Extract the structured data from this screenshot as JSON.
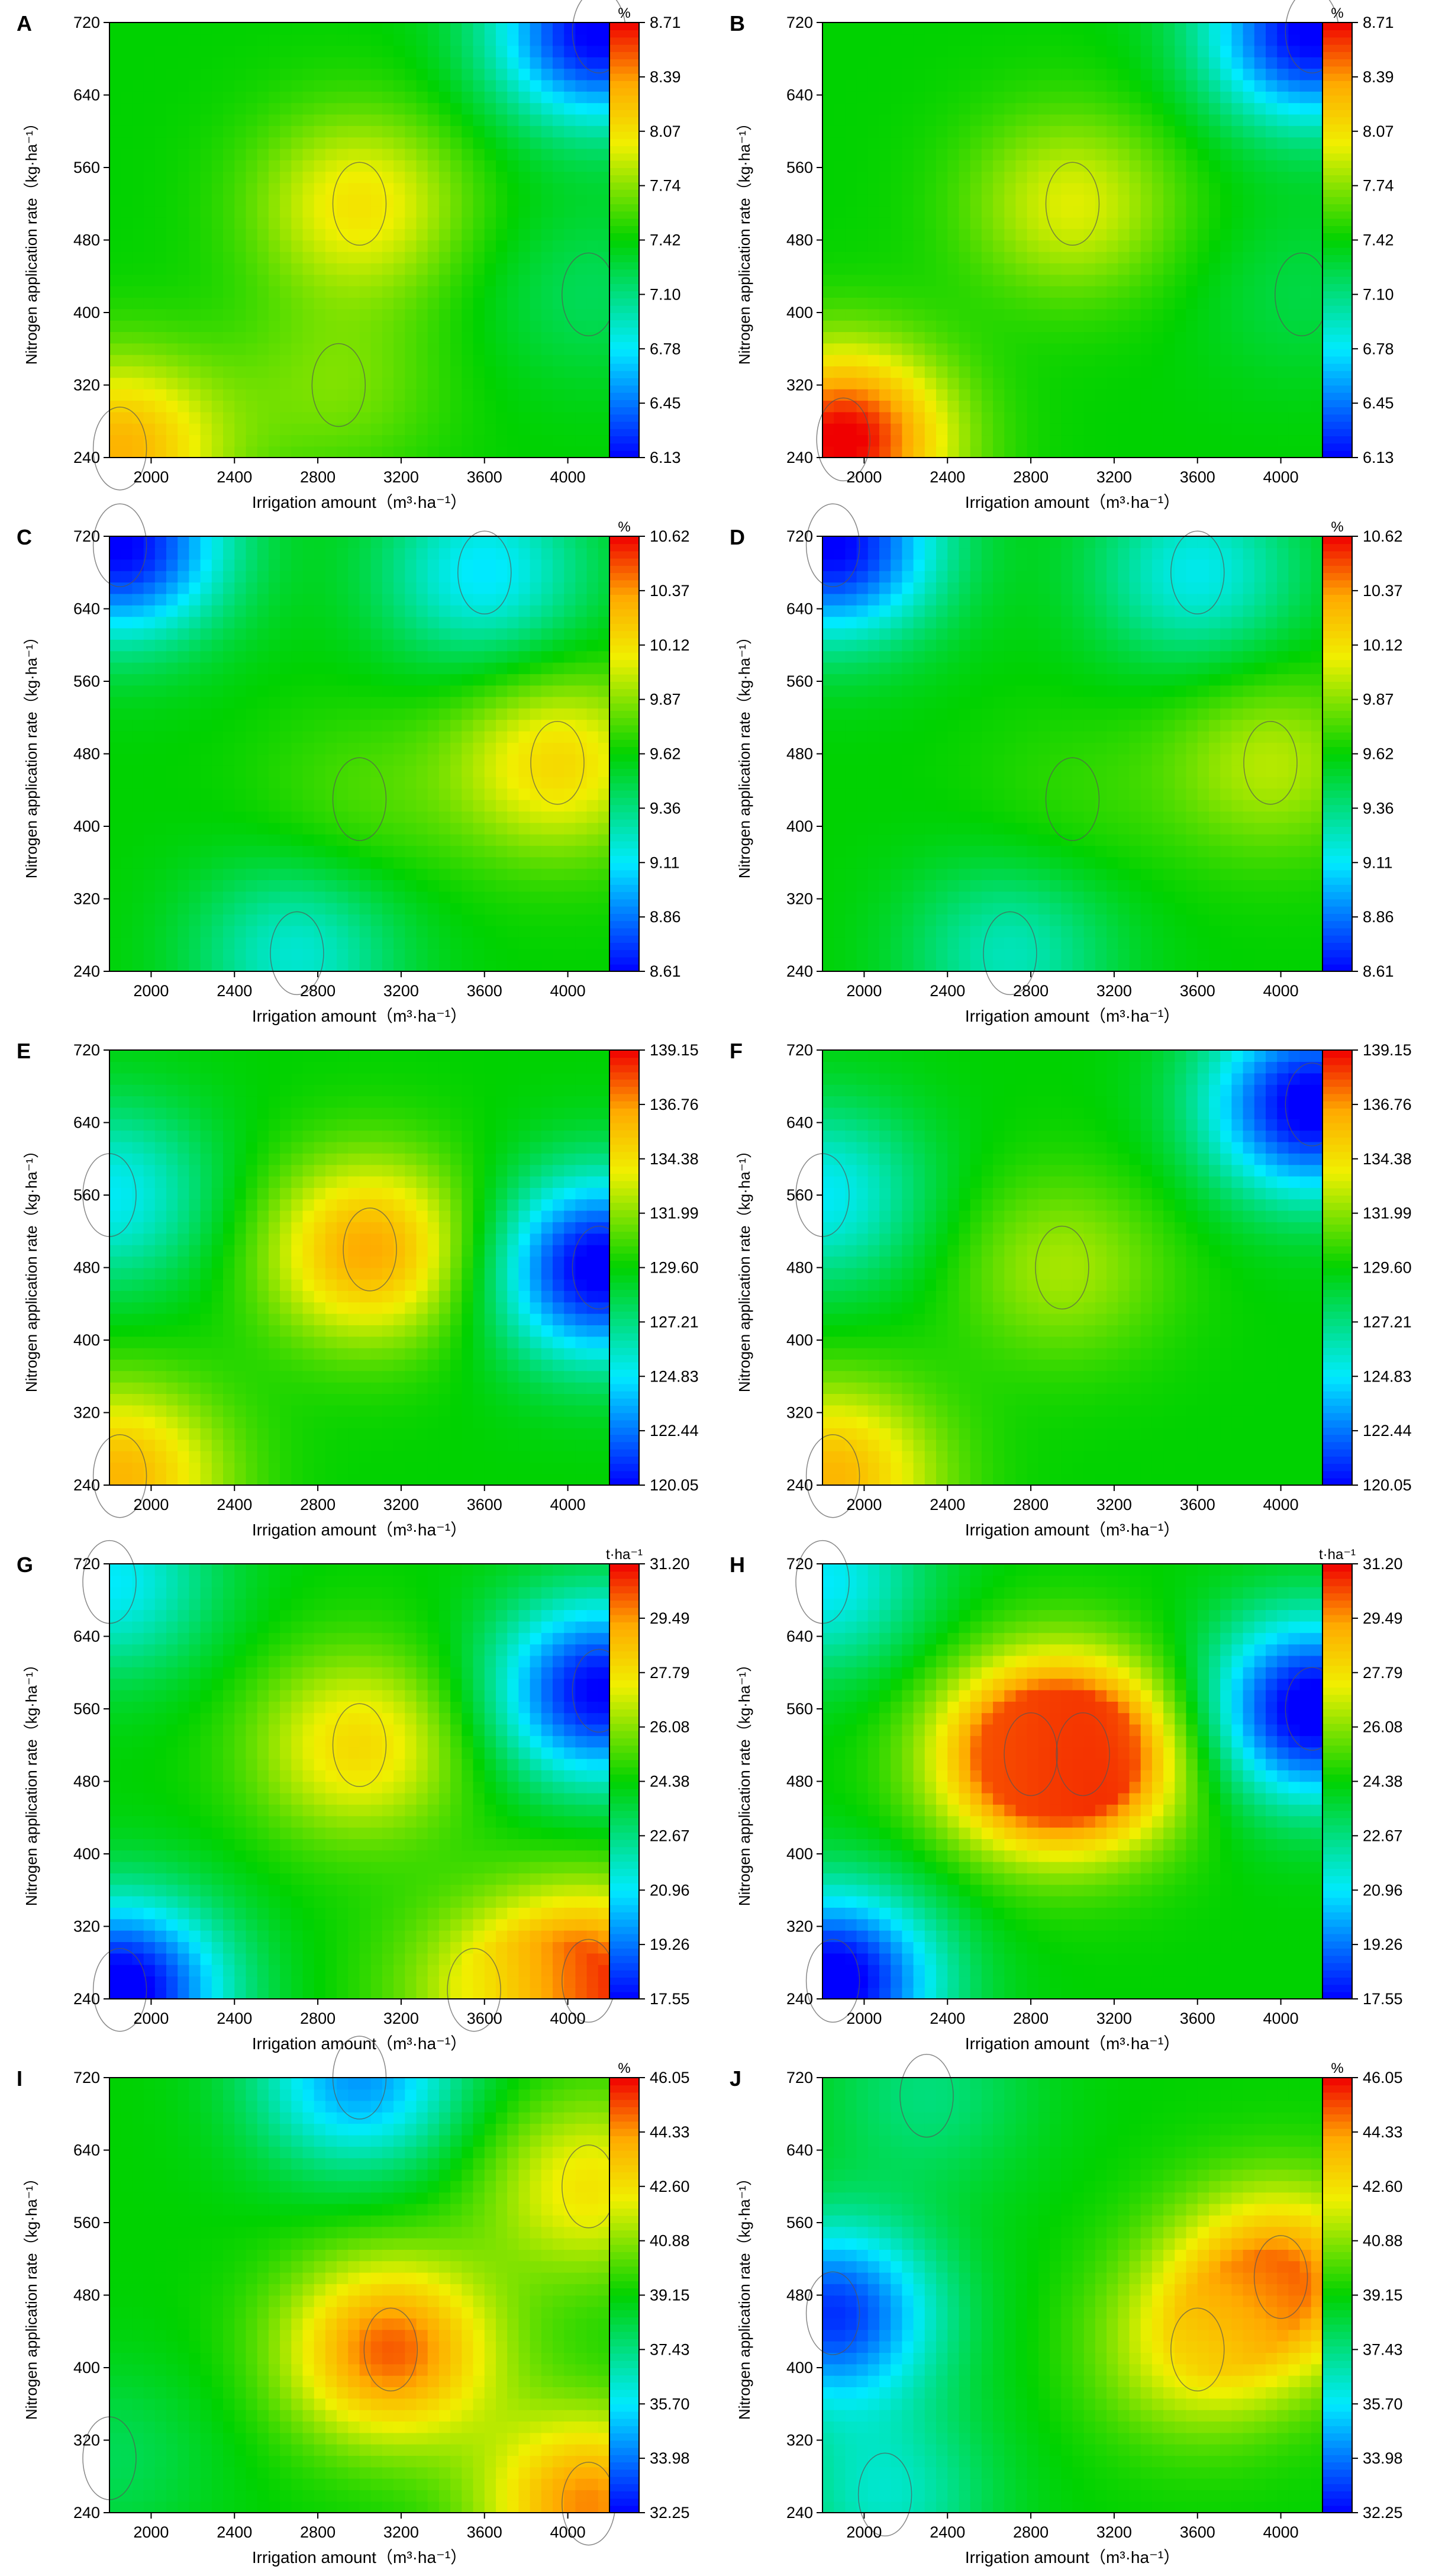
{
  "chart_data": [
    {
      "panel": "A",
      "type": "heatmap",
      "xlabel": "Irrigation amount（m³·ha⁻¹）",
      "ylabel": "Nitrogen application rate（kg·ha⁻¹）",
      "unit": "%",
      "x_ticks": [
        "2000",
        "2400",
        "2800",
        "3200",
        "3600",
        "4000"
      ],
      "y_ticks": [
        "240",
        "320",
        "400",
        "480",
        "560",
        "640",
        "720"
      ],
      "xlim": [
        1800,
        4200
      ],
      "ylim": [
        240,
        720
      ],
      "colorbar": [
        "6.13",
        "6.45",
        "6.78",
        "7.10",
        "7.42",
        "7.74",
        "8.07",
        "8.39",
        "8.71"
      ],
      "zlim": [
        6.13,
        8.71
      ],
      "hotspots": [
        {
          "x": 3000,
          "y": 520,
          "value": 8.05
        },
        {
          "x": 1850,
          "y": 250,
          "value": 8.3
        },
        {
          "x": 2900,
          "y": 320,
          "value": 7.7
        }
      ],
      "coldspots": [
        {
          "x": 4150,
          "y": 710,
          "value": 6.1
        },
        {
          "x": 4100,
          "y": 420,
          "value": 7.2
        }
      ]
    },
    {
      "panel": "B",
      "type": "heatmap",
      "xlabel": "Irrigation amount（m³·ha⁻¹）",
      "ylabel": "Nitrogen application rate（kg·ha⁻¹）",
      "unit": "%",
      "x_ticks": [
        "2000",
        "2400",
        "2800",
        "3200",
        "3600",
        "4000"
      ],
      "y_ticks": [
        "240",
        "320",
        "400",
        "480",
        "560",
        "640",
        "720"
      ],
      "xlim": [
        1800,
        4200
      ],
      "ylim": [
        240,
        720
      ],
      "colorbar": [
        "6.13",
        "6.45",
        "6.78",
        "7.10",
        "7.42",
        "7.74",
        "8.07",
        "8.39",
        "8.71"
      ],
      "zlim": [
        6.13,
        8.71
      ],
      "hotspots": [
        {
          "x": 1900,
          "y": 260,
          "value": 8.75
        },
        {
          "x": 3000,
          "y": 520,
          "value": 7.95
        }
      ],
      "coldspots": [
        {
          "x": 4150,
          "y": 710,
          "value": 6.1
        },
        {
          "x": 4100,
          "y": 420,
          "value": 7.25
        }
      ]
    },
    {
      "panel": "C",
      "type": "heatmap",
      "xlabel": "Irrigation amount（m³·ha⁻¹）",
      "ylabel": "Nitrogen application rate（kg·ha⁻¹）",
      "unit": "%",
      "x_ticks": [
        "2000",
        "2400",
        "2800",
        "3200",
        "3600",
        "4000"
      ],
      "y_ticks": [
        "240",
        "320",
        "400",
        "480",
        "560",
        "640",
        "720"
      ],
      "xlim": [
        1800,
        4200
      ],
      "ylim": [
        240,
        720
      ],
      "colorbar": [
        "8.61",
        "8.86",
        "9.11",
        "9.36",
        "9.62",
        "9.87",
        "10.12",
        "10.37",
        "10.62"
      ],
      "zlim": [
        8.61,
        10.62
      ],
      "hotspots": [
        {
          "x": 3950,
          "y": 470,
          "value": 10.15
        },
        {
          "x": 3000,
          "y": 430,
          "value": 9.75
        }
      ],
      "coldspots": [
        {
          "x": 1850,
          "y": 710,
          "value": 8.6
        },
        {
          "x": 2700,
          "y": 260,
          "value": 9.2
        },
        {
          "x": 3600,
          "y": 680,
          "value": 9.1
        }
      ]
    },
    {
      "panel": "D",
      "type": "heatmap",
      "xlabel": "Irrigation amount（m³·ha⁻¹）",
      "ylabel": "Nitrogen application rate（kg·ha⁻¹）",
      "unit": "%",
      "x_ticks": [
        "2000",
        "2400",
        "2800",
        "3200",
        "3600",
        "4000"
      ],
      "y_ticks": [
        "240",
        "320",
        "400",
        "480",
        "560",
        "640",
        "720"
      ],
      "xlim": [
        1800,
        4200
      ],
      "ylim": [
        240,
        720
      ],
      "colorbar": [
        "8.61",
        "8.86",
        "9.11",
        "9.36",
        "9.62",
        "9.87",
        "10.12",
        "10.37",
        "10.62"
      ],
      "zlim": [
        8.61,
        10.62
      ],
      "hotspots": [
        {
          "x": 3950,
          "y": 470,
          "value": 9.95
        },
        {
          "x": 3000,
          "y": 430,
          "value": 9.7
        }
      ],
      "coldspots": [
        {
          "x": 1850,
          "y": 710,
          "value": 8.6
        },
        {
          "x": 2700,
          "y": 260,
          "value": 9.25
        },
        {
          "x": 3600,
          "y": 680,
          "value": 9.15
        }
      ]
    },
    {
      "panel": "E",
      "type": "heatmap",
      "xlabel": "Irrigation amount（m³·ha⁻¹）",
      "ylabel": "Nitrogen application rate（kg·ha⁻¹）",
      "unit": "",
      "x_ticks": [
        "2000",
        "2400",
        "2800",
        "3200",
        "3600",
        "4000"
      ],
      "y_ticks": [
        "240",
        "320",
        "400",
        "480",
        "560",
        "640",
        "720"
      ],
      "xlim": [
        1800,
        4200
      ],
      "ylim": [
        240,
        720
      ],
      "colorbar": [
        "120.05",
        "122.44",
        "124.83",
        "127.21",
        "129.60",
        "131.99",
        "134.38",
        "136.76",
        "139.15"
      ],
      "zlim": [
        120.05,
        139.15
      ],
      "hotspots": [
        {
          "x": 3050,
          "y": 500,
          "value": 136.5
        },
        {
          "x": 1850,
          "y": 250,
          "value": 136.0
        }
      ],
      "coldspots": [
        {
          "x": 4150,
          "y": 480,
          "value": 119.5
        },
        {
          "x": 1800,
          "y": 560,
          "value": 125.0
        }
      ]
    },
    {
      "panel": "F",
      "type": "heatmap",
      "xlabel": "Irrigation amount（m³·ha⁻¹）",
      "ylabel": "Nitrogen application rate（kg·ha⁻¹）",
      "unit": "",
      "x_ticks": [
        "2000",
        "2400",
        "2800",
        "3200",
        "3600",
        "4000"
      ],
      "y_ticks": [
        "240",
        "320",
        "400",
        "480",
        "560",
        "640",
        "720"
      ],
      "xlim": [
        1800,
        4200
      ],
      "ylim": [
        240,
        720
      ],
      "colorbar": [
        "120.05",
        "122.44",
        "124.83",
        "127.21",
        "129.60",
        "131.99",
        "134.38",
        "136.76",
        "139.15"
      ],
      "zlim": [
        120.05,
        139.15
      ],
      "hotspots": [
        {
          "x": 2950,
          "y": 480,
          "value": 132.5
        },
        {
          "x": 1850,
          "y": 250,
          "value": 136.0
        }
      ],
      "coldspots": [
        {
          "x": 4150,
          "y": 660,
          "value": 119.5
        },
        {
          "x": 1800,
          "y": 560,
          "value": 125.0
        }
      ]
    },
    {
      "panel": "G",
      "type": "heatmap",
      "xlabel": "Irrigation amount（m³·ha⁻¹）",
      "ylabel": "Nitrogen application rate（kg·ha⁻¹）",
      "unit": "t·ha⁻¹",
      "x_ticks": [
        "2000",
        "2400",
        "2800",
        "3200",
        "3600",
        "4000"
      ],
      "y_ticks": [
        "240",
        "320",
        "400",
        "480",
        "560",
        "640",
        "720"
      ],
      "xlim": [
        1800,
        4200
      ],
      "ylim": [
        240,
        720
      ],
      "colorbar": [
        "17.55",
        "19.26",
        "20.96",
        "22.67",
        "24.38",
        "26.08",
        "27.79",
        "29.49",
        "31.20"
      ],
      "zlim": [
        17.55,
        31.2
      ],
      "hotspots": [
        {
          "x": 3000,
          "y": 520,
          "value": 28.0
        },
        {
          "x": 4100,
          "y": 260,
          "value": 30.5
        },
        {
          "x": 3550,
          "y": 250,
          "value": 26.0
        }
      ],
      "coldspots": [
        {
          "x": 1850,
          "y": 250,
          "value": 17.0
        },
        {
          "x": 4150,
          "y": 580,
          "value": 17.5
        },
        {
          "x": 1800,
          "y": 700,
          "value": 21.0
        }
      ]
    },
    {
      "panel": "H",
      "type": "heatmap",
      "xlabel": "Irrigation amount（m³·ha⁻¹）",
      "ylabel": "Nitrogen application rate（kg·ha⁻¹）",
      "unit": "t·ha⁻¹",
      "x_ticks": [
        "2000",
        "2400",
        "2800",
        "3200",
        "3600",
        "4000"
      ],
      "y_ticks": [
        "240",
        "320",
        "400",
        "480",
        "560",
        "640",
        "720"
      ],
      "xlim": [
        1800,
        4200
      ],
      "ylim": [
        240,
        720
      ],
      "colorbar": [
        "17.55",
        "19.26",
        "20.96",
        "22.67",
        "24.38",
        "26.08",
        "27.79",
        "29.49",
        "31.20"
      ],
      "zlim": [
        17.55,
        31.2
      ],
      "hotspots": [
        {
          "x": 3050,
          "y": 510,
          "value": 30.3
        },
        {
          "x": 2800,
          "y": 510,
          "value": 29.0
        }
      ],
      "coldspots": [
        {
          "x": 1850,
          "y": 260,
          "value": 17.0
        },
        {
          "x": 4150,
          "y": 560,
          "value": 17.0
        },
        {
          "x": 1800,
          "y": 700,
          "value": 21.0
        }
      ]
    },
    {
      "panel": "I",
      "type": "heatmap",
      "xlabel": "Irrigation amount（m³·ha⁻¹）",
      "ylabel": "Nitrogen application rate（kg·ha⁻¹）",
      "unit": "%",
      "x_ticks": [
        "2000",
        "2400",
        "2800",
        "3200",
        "3600",
        "4000"
      ],
      "y_ticks": [
        "240",
        "320",
        "400",
        "480",
        "560",
        "640",
        "720"
      ],
      "xlim": [
        1800,
        4200
      ],
      "ylim": [
        240,
        720
      ],
      "colorbar": [
        "32.25",
        "33.98",
        "35.70",
        "37.43",
        "39.15",
        "40.88",
        "42.60",
        "44.33",
        "46.05"
      ],
      "zlim": [
        32.25,
        46.05
      ],
      "hotspots": [
        {
          "x": 3150,
          "y": 420,
          "value": 45.0
        },
        {
          "x": 4100,
          "y": 250,
          "value": 44.5
        },
        {
          "x": 4100,
          "y": 600,
          "value": 42.5
        }
      ],
      "coldspots": [
        {
          "x": 3000,
          "y": 720,
          "value": 34.5
        },
        {
          "x": 1800,
          "y": 300,
          "value": 38.0
        }
      ]
    },
    {
      "panel": "J",
      "type": "heatmap",
      "xlabel": "Irrigation amount（m³·ha⁻¹）",
      "ylabel": "Nitrogen application rate（kg·ha⁻¹）",
      "unit": "%",
      "x_ticks": [
        "2000",
        "2400",
        "2800",
        "3200",
        "3600",
        "4000"
      ],
      "y_ticks": [
        "240",
        "320",
        "400",
        "480",
        "560",
        "640",
        "720"
      ],
      "xlim": [
        1800,
        4200
      ],
      "ylim": [
        240,
        720
      ],
      "colorbar": [
        "32.25",
        "33.98",
        "35.70",
        "37.43",
        "39.15",
        "40.88",
        "42.60",
        "44.33",
        "46.05"
      ],
      "zlim": [
        32.25,
        46.05
      ],
      "hotspots": [
        {
          "x": 4000,
          "y": 500,
          "value": 44.5
        },
        {
          "x": 3600,
          "y": 420,
          "value": 42.0
        }
      ],
      "coldspots": [
        {
          "x": 1850,
          "y": 460,
          "value": 33.0
        },
        {
          "x": 2100,
          "y": 260,
          "value": 36.5
        },
        {
          "x": 2300,
          "y": 700,
          "value": 37.5
        }
      ]
    }
  ]
}
